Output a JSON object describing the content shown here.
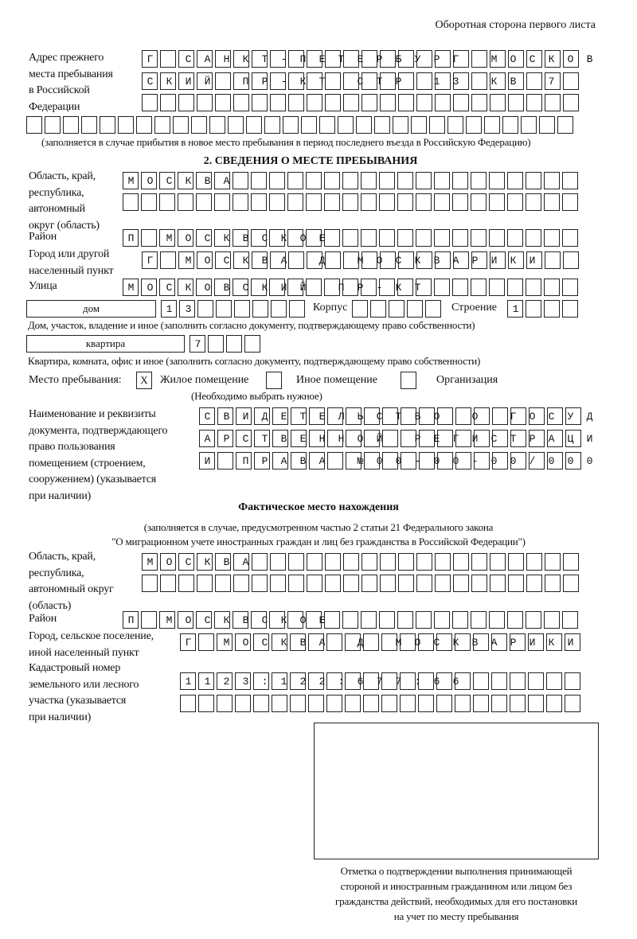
{
  "header": {
    "page_side": "Оборотная сторона первого листа"
  },
  "previous_address": {
    "label": [
      "Адрес прежнего",
      "места пребывания",
      "в Российской",
      "Федерации"
    ],
    "rows": [
      "Г САНКТ-ПЕТЕРБУРГ МОСКОВ",
      "СКИЙ ПР-КТ СТР 13 КВ 7",
      "",
      ""
    ],
    "note": "(заполняется в случае прибытия в новое место пребывания в период последнего въезда в Российскую Федерацию)"
  },
  "section2": {
    "title": "2. СВЕДЕНИЯ О МЕСТЕ ПРЕБЫВАНИЯ",
    "region_label": [
      "Область, край,",
      "республика,",
      "автономный",
      "округ (область)"
    ],
    "region_rows": [
      "МОСКВА",
      ""
    ],
    "district_label": "Район",
    "district_row": "П МОСКВСКОЕ",
    "city_label": [
      "Город или другой",
      "населенный пункт"
    ],
    "city_row": "Г МОСКВА Д МОСКВАРИКИ",
    "street_label": "Улица",
    "street_row": "МОСКОВСКИЙ ПР-КТ",
    "house_type": "дом",
    "house_row": "13",
    "korpus_label": "Корпус",
    "korpus_row": "",
    "building_label": "Строение",
    "building_row": "1",
    "house_note": "Дом, участок, владение и иное (заполнить согласно документу, подтверждающему право собственности)",
    "apt_type": "квартира",
    "apt_row": "7",
    "apt_note": "Квартира, комната, офис и иное (заполнить согласно документу, подтверждающему право собственности)",
    "stay_place_label": "Место пребывания:",
    "stay_options": [
      {
        "label": "Жилое помещение",
        "mark": "X"
      },
      {
        "label": "Иное помещение",
        "mark": ""
      },
      {
        "label": "Организация",
        "mark": ""
      }
    ],
    "stay_note": "(Необходимо выбрать нужное)",
    "doc_label": [
      "Наименование и реквизиты",
      "документа, подтверждающего",
      "право пользования",
      "помещением (строением,",
      "сооружением) (указывается",
      "при наличии)"
    ],
    "doc_rows": [
      "СВИДЕТЕЛЬСТВО О ГОСУД",
      "АРСТВЕННОЙ РЕГИСТРАЦИ",
      "И ПРАВА №00-00-00/000"
    ]
  },
  "actual": {
    "title": "Фактическое место нахождения",
    "note": [
      "(заполняется в случае, предусмотренном частью 2 статьи 21 Федерального закона",
      "\"О миграционном учете иностранных граждан и лиц без гражданства в Российской Федерации\")"
    ],
    "region_label": [
      "Область, край,",
      "республика,",
      "автономный округ",
      "(область)"
    ],
    "region_rows": [
      "МОСКВА",
      ""
    ],
    "district_label": "Район",
    "district_row": "П МОСКВСКОЕ",
    "city_label": [
      "Город, сельское поселение,",
      "иной населенный пункт"
    ],
    "city_row": "Г МОСКВА Д МОСКВАРИКИ",
    "cadastre_label": [
      "Кадастровый номер",
      "земельного или лесного",
      "участка (указывается",
      "при наличии)"
    ],
    "cadastre_rows": [
      "1123:122:677:66",
      ""
    ]
  },
  "stamp": {
    "caption": [
      "Отметка о подтверждении выполнения принимающей",
      "стороной и иностранным гражданином или лицом без",
      "гражданства действий, необходимых для его постановки",
      "на учет по месту пребывания"
    ]
  }
}
